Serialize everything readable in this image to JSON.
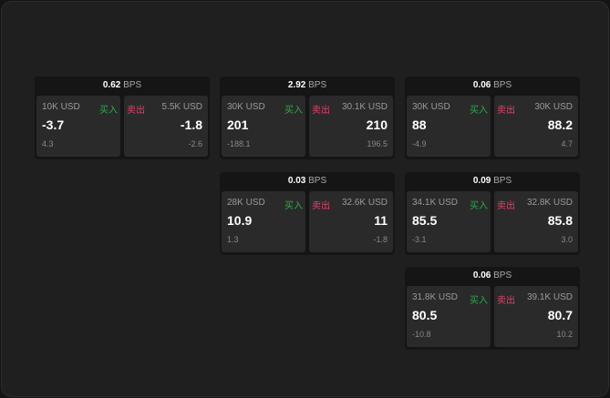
{
  "unit": "BPS",
  "buy_label": "买入",
  "sell_label": "卖出",
  "colors": {
    "buy": "#2ea84f",
    "sell": "#e0416a"
  },
  "cards": [
    {
      "spread": "0.62",
      "bid_size": "10K USD",
      "bid": "-3.7",
      "bid_change": "4.3",
      "ask_size": "5.5K USD",
      "ask": "-1.8",
      "ask_change": "-2.6"
    },
    {
      "spread": "2.92",
      "bid_size": "30K USD",
      "bid": "201",
      "bid_change": "-188.1",
      "ask_size": "30.1K USD",
      "ask": "210",
      "ask_change": "196.5"
    },
    {
      "spread": "0.06",
      "bid_size": "30K USD",
      "bid": "88",
      "bid_change": "-4.9",
      "ask_size": "30K USD",
      "ask": "88.2",
      "ask_change": "4.7"
    },
    {
      "spread": "0.03",
      "bid_size": "28K USD",
      "bid": "10.9",
      "bid_change": "1.3",
      "ask_size": "32.6K USD",
      "ask": "11",
      "ask_change": "-1.8"
    },
    {
      "spread": "0.09",
      "bid_size": "34.1K USD",
      "bid": "85.5",
      "bid_change": "-3.1",
      "ask_size": "32.8K USD",
      "ask": "85.8",
      "ask_change": "3.0"
    },
    {
      "spread": "0.06",
      "bid_size": "31.8K USD",
      "bid": "80.5",
      "bid_change": "-10.8",
      "ask_size": "39.1K USD",
      "ask": "80.7",
      "ask_change": "10.2"
    }
  ]
}
